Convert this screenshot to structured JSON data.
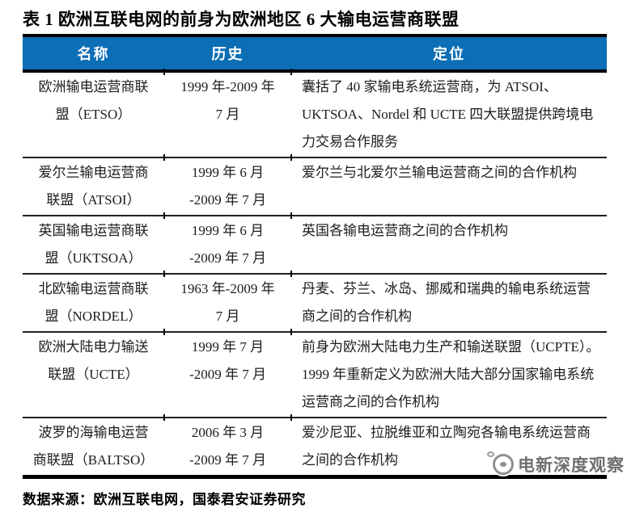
{
  "page": {
    "title": "表 1 欧洲互联电网的前身为欧洲地区 6 大输电运营商联盟",
    "source_note": "数据来源：欧洲互联电网，国泰君安证券研究",
    "watermark_text": "电新深度观察"
  },
  "colors": {
    "header_bg": "#0c6eb5",
    "header_text": "#ffffff",
    "rule": "#000000",
    "watermark_gray": "#6f6f6f"
  },
  "table": {
    "columns": [
      "名称",
      "历史",
      "定位"
    ],
    "rows": [
      {
        "name": "欧洲输电运营商联盟（ETSO）",
        "name_lines": [
          "欧洲输电运营商联",
          "盟（ETSO）"
        ],
        "history_lines": [
          "1999 年-2009 年",
          "7 月"
        ],
        "position": "囊括了 40 家输电系统运营商，为 ATSOI、UKTSOA、Nordel 和 UCTE 四大联盟提供跨境电力交易合作服务"
      },
      {
        "name": "爱尔兰输电运营商联盟（ATSOI）",
        "name_lines": [
          "爱尔兰输电运营商",
          "联盟（ATSOI）"
        ],
        "history_lines": [
          "1999 年 6 月",
          "-2009 年 7 月"
        ],
        "position": "爱尔兰与北爱尔兰输电运营商之间的合作机构"
      },
      {
        "name": "英国输电运营商联盟（UKTSOA）",
        "name_lines": [
          "英国输电运营商联",
          "盟（UKTSOA）"
        ],
        "history_lines": [
          "1999 年 6 月",
          "-2009 年 7 月"
        ],
        "position": "英国各输电运营商之间的合作机构"
      },
      {
        "name": "北欧输电运营商联盟（NORDEL）",
        "name_lines": [
          "北欧输电运营商联",
          "盟（NORDEL）"
        ],
        "history_lines": [
          "1963 年-2009 年",
          "7 月"
        ],
        "position": "丹麦、芬兰、冰岛、挪威和瑞典的输电系统运营商之间的合作机构"
      },
      {
        "name": "欧洲大陆电力输送联盟（UCTE）",
        "name_lines": [
          "欧洲大陆电力输送",
          "联盟（UCTE）"
        ],
        "history_lines": [
          "1999 年 7 月",
          "-2009 年 7 月"
        ],
        "position": "前身为欧洲大陆电力生产和输送联盟（UCPTE）。1999 年重新定义为欧洲大陆大部分国家输电系统运营商之间的合作机构"
      },
      {
        "name": "波罗的海输电运营商联盟（BALTSO）",
        "name_lines": [
          "波罗的海输电运营",
          "商联盟（BALTSO）"
        ],
        "history_lines": [
          "2006 年 3 月",
          "-2009 年 7 月"
        ],
        "position": "爱沙尼亚、拉脱维亚和立陶宛各输电系统运营商之间的合作机构"
      }
    ]
  }
}
